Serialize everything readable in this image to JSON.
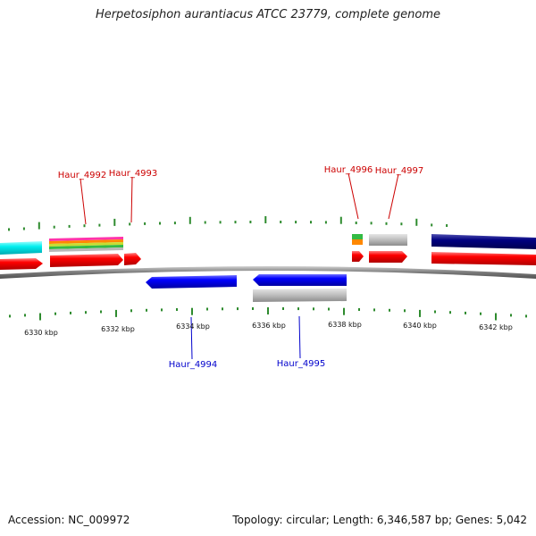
{
  "title": "Herpetosiphon aurantiacus ATCC 23779, complete genome",
  "footer": {
    "accession": "Accession: NC_009972",
    "stats": "Topology: circular; Length: 6,346,587 bp; Genes: 5,042"
  },
  "colors": {
    "forward_cds": "#ff0000",
    "reverse_cds": "#0000ff",
    "rna_or_other": "#b0b0b0",
    "cyan_feature": "#00e5ee",
    "navy_feature": "#000080",
    "tick": "#2e8b2e",
    "backbone": "#888888",
    "label_forward": "#cc0000",
    "label_reverse": "#0000cc"
  },
  "axis": {
    "tick_labels": [
      "6330 kbp",
      "6332 kbp",
      "6334 kbp",
      "6336 kbp",
      "6338 kbp",
      "6340 kbp",
      "6342 kbp"
    ]
  },
  "gene_labels": {
    "top": [
      "Haur_4992",
      "Haur_4993",
      "Haur_4996",
      "Haur_4997"
    ],
    "bottom": [
      "Haur_4994",
      "Haur_4995"
    ]
  }
}
